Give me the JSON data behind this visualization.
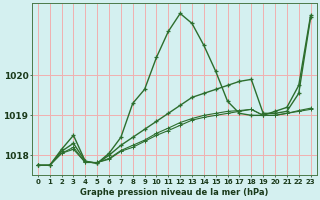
{
  "xlabel": "Graphe pression niveau de la mer (hPa)",
  "hours": [
    0,
    1,
    2,
    3,
    4,
    5,
    6,
    7,
    8,
    9,
    10,
    11,
    12,
    13,
    14,
    15,
    16,
    17,
    18,
    19,
    20,
    21,
    22,
    23
  ],
  "curve_hump": [
    1017.75,
    1017.75,
    1018.15,
    1018.5,
    1017.85,
    1017.8,
    1018.05,
    1018.45,
    1019.3,
    1019.65,
    1020.45,
    1021.1,
    1021.55,
    1021.3,
    1020.75,
    1020.1,
    1019.35,
    1019.05,
    1019.0,
    1019.0,
    1019.1,
    1019.2,
    1019.75,
    1021.5
  ],
  "curve_rise": [
    1017.75,
    1017.75,
    1018.1,
    1018.3,
    1017.85,
    1017.8,
    1018.0,
    1018.25,
    1018.45,
    1018.65,
    1018.85,
    1019.05,
    1019.25,
    1019.45,
    1019.55,
    1019.65,
    1019.75,
    1019.85,
    1019.9,
    1019.05,
    1019.05,
    1019.1,
    1019.55,
    1021.45
  ],
  "curve_flat1": [
    1017.75,
    1017.75,
    1018.05,
    1018.15,
    1017.82,
    1017.82,
    1017.9,
    1018.1,
    1018.2,
    1018.35,
    1018.5,
    1018.62,
    1018.75,
    1018.88,
    1018.95,
    1019.0,
    1019.05,
    1019.1,
    1019.15,
    1019.0,
    1019.0,
    1019.05,
    1019.1,
    1019.15
  ],
  "curve_flat2": [
    1017.75,
    1017.75,
    1018.05,
    1018.2,
    1017.82,
    1017.82,
    1017.92,
    1018.12,
    1018.25,
    1018.38,
    1018.55,
    1018.68,
    1018.82,
    1018.92,
    1019.0,
    1019.05,
    1019.1,
    1019.12,
    1019.15,
    1019.0,
    1019.0,
    1019.05,
    1019.12,
    1019.18
  ],
  "bg_color": "#d4f0f0",
  "grid_color": "#f0b0b0",
  "line_color": "#2d6e2d",
  "ylim": [
    1017.5,
    1021.8
  ],
  "yticks": [
    1018,
    1019,
    1020
  ],
  "figsize": [
    3.2,
    2.0
  ],
  "dpi": 100
}
